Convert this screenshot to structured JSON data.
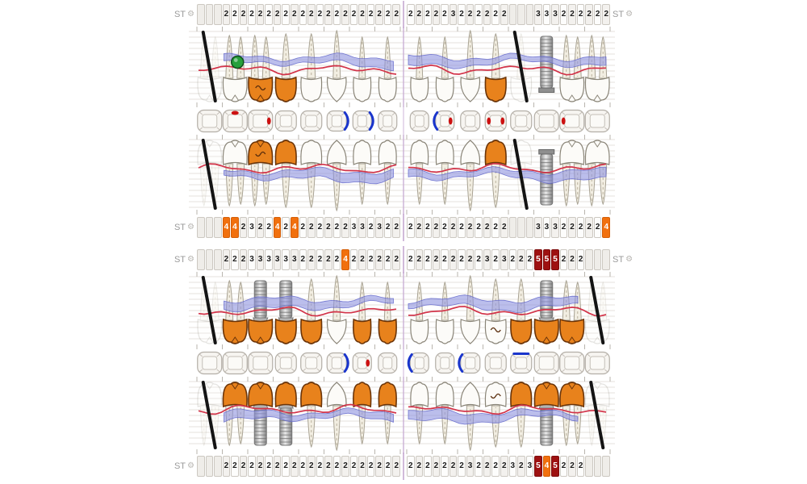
{
  "labels": {
    "st": "ST",
    "gear_icon": "settings-gear"
  },
  "colors": {
    "crown_orange": "#e8821c",
    "cell_orange": "#f1700e",
    "cell_dark_red": "#9e1111",
    "band_blue": "#8d92e0",
    "gum_red": "#d23349",
    "bracket_blue": "#1a35cc",
    "dot_red": "#cc1111",
    "marker_green": "#27a03c",
    "midline_purple": "#c9aed4"
  },
  "st_rows": [
    {
      "name": "upper-buccal-depths",
      "label_left": "ST",
      "label_right": "ST",
      "left": [
        "",
        "",
        "",
        "2",
        "2",
        "2",
        "2",
        "2",
        "2",
        "2",
        "2",
        "2",
        "2",
        "2",
        "2",
        "2",
        "2",
        "2",
        "2",
        "2",
        "2",
        "2",
        "2",
        "2"
      ],
      "right": [
        "2",
        "2",
        "2",
        "2",
        "2",
        "3",
        "2",
        "2",
        "2",
        "2",
        "2",
        "2",
        "",
        "",
        "",
        "3",
        "3",
        "3",
        "2",
        "2",
        "2",
        "2",
        "2",
        "2"
      ]
    },
    {
      "name": "upper-palatal-depths",
      "label_left": "ST",
      "label_right": "",
      "left": [
        "",
        "",
        "",
        "4",
        "4",
        "2",
        "3",
        "2",
        "2",
        "4",
        "2",
        "4",
        "2",
        "2",
        "2",
        "2",
        "2",
        "2",
        "3",
        "3",
        "2",
        "3",
        "2",
        "2"
      ],
      "right": [
        "2",
        "2",
        "2",
        "2",
        "2",
        "2",
        "2",
        "2",
        "2",
        "2",
        "2",
        "2",
        "",
        "",
        "",
        "3",
        "3",
        "3",
        "2",
        "2",
        "2",
        "2",
        "2",
        "4"
      ]
    },
    {
      "name": "lower-lingual-depths",
      "label_left": "ST",
      "label_right": "ST",
      "left": [
        "",
        "",
        "",
        "2",
        "2",
        "2",
        "3",
        "3",
        "3",
        "3",
        "3",
        "3",
        "2",
        "2",
        "2",
        "2",
        "2",
        "4",
        "2",
        "2",
        "2",
        "2",
        "2",
        "2"
      ],
      "right": [
        "2",
        "2",
        "2",
        "2",
        "2",
        "2",
        "2",
        "2",
        "2",
        "3",
        "2",
        "3",
        "2",
        "2",
        "2",
        "5",
        "5",
        "5",
        "2",
        "2",
        "2",
        "",
        "",
        ""
      ]
    },
    {
      "name": "lower-buccal-depths",
      "label_left": "ST",
      "label_right": "",
      "left": [
        "",
        "",
        "",
        "2",
        "2",
        "2",
        "2",
        "2",
        "2",
        "2",
        "2",
        "2",
        "2",
        "2",
        "2",
        "2",
        "2",
        "2",
        "2",
        "2",
        "2",
        "2",
        "2",
        "2"
      ],
      "right": [
        "2",
        "2",
        "2",
        "2",
        "2",
        "2",
        "2",
        "3",
        "2",
        "2",
        "2",
        "2",
        "3",
        "2",
        "3",
        "5",
        "4",
        "5",
        "2",
        "2",
        "2",
        "",
        "",
        ""
      ]
    }
  ],
  "quadrants": {
    "upper_left": [
      {
        "type": "molar",
        "state": "missing"
      },
      {
        "type": "molar",
        "state": "normal",
        "marker": "green-dot"
      },
      {
        "type": "molar",
        "state": "crown",
        "mark": true
      },
      {
        "type": "premolar",
        "state": "crown"
      },
      {
        "type": "premolar",
        "state": "normal"
      },
      {
        "type": "canine",
        "state": "normal"
      },
      {
        "type": "incisor",
        "state": "normal"
      },
      {
        "type": "incisor",
        "state": "normal"
      }
    ],
    "upper_right": [
      {
        "type": "incisor",
        "state": "normal"
      },
      {
        "type": "incisor",
        "state": "normal"
      },
      {
        "type": "canine",
        "state": "normal"
      },
      {
        "type": "premolar",
        "state": "crown"
      },
      {
        "type": "premolar",
        "state": "missing"
      },
      {
        "type": "molar",
        "state": "implant"
      },
      {
        "type": "molar",
        "state": "normal"
      },
      {
        "type": "molar",
        "state": "normal"
      }
    ],
    "lower_left": [
      {
        "type": "molar",
        "state": "missing"
      },
      {
        "type": "molar",
        "state": "crown"
      },
      {
        "type": "molar",
        "state": "implant-crown"
      },
      {
        "type": "premolar",
        "state": "implant-crown"
      },
      {
        "type": "premolar",
        "state": "crown"
      },
      {
        "type": "canine",
        "state": "normal"
      },
      {
        "type": "incisor",
        "state": "crown"
      },
      {
        "type": "incisor",
        "state": "crown"
      }
    ],
    "lower_right": [
      {
        "type": "incisor",
        "state": "normal"
      },
      {
        "type": "incisor",
        "state": "normal"
      },
      {
        "type": "canine",
        "state": "normal"
      },
      {
        "type": "premolar",
        "state": "normal",
        "mark": true
      },
      {
        "type": "premolar",
        "state": "crown"
      },
      {
        "type": "molar",
        "state": "implant-crown"
      },
      {
        "type": "molar",
        "state": "crown"
      },
      {
        "type": "molar",
        "state": "missing"
      }
    ]
  },
  "occlusal": {
    "upper_left": [
      {},
      {
        "dot_top": true
      },
      {
        "dot_right": true
      },
      {},
      {},
      {
        "bracket_right": true
      },
      {
        "bracket_right": true
      },
      {}
    ],
    "upper_right": [
      {},
      {
        "bracket_left": true,
        "dot_right": true
      },
      {},
      {
        "dot_left": true,
        "dot_right": true
      },
      {},
      {},
      {
        "dot_left": true
      },
      {}
    ],
    "lower_left": [
      {},
      {},
      {},
      {},
      {},
      {
        "bracket_right": true
      },
      {
        "dot_right": true
      },
      {}
    ],
    "lower_right": [
      {
        "bracket_left": true
      },
      {},
      {
        "bracket_left": true
      },
      {},
      {
        "line_top": true
      },
      {},
      {},
      {}
    ]
  }
}
